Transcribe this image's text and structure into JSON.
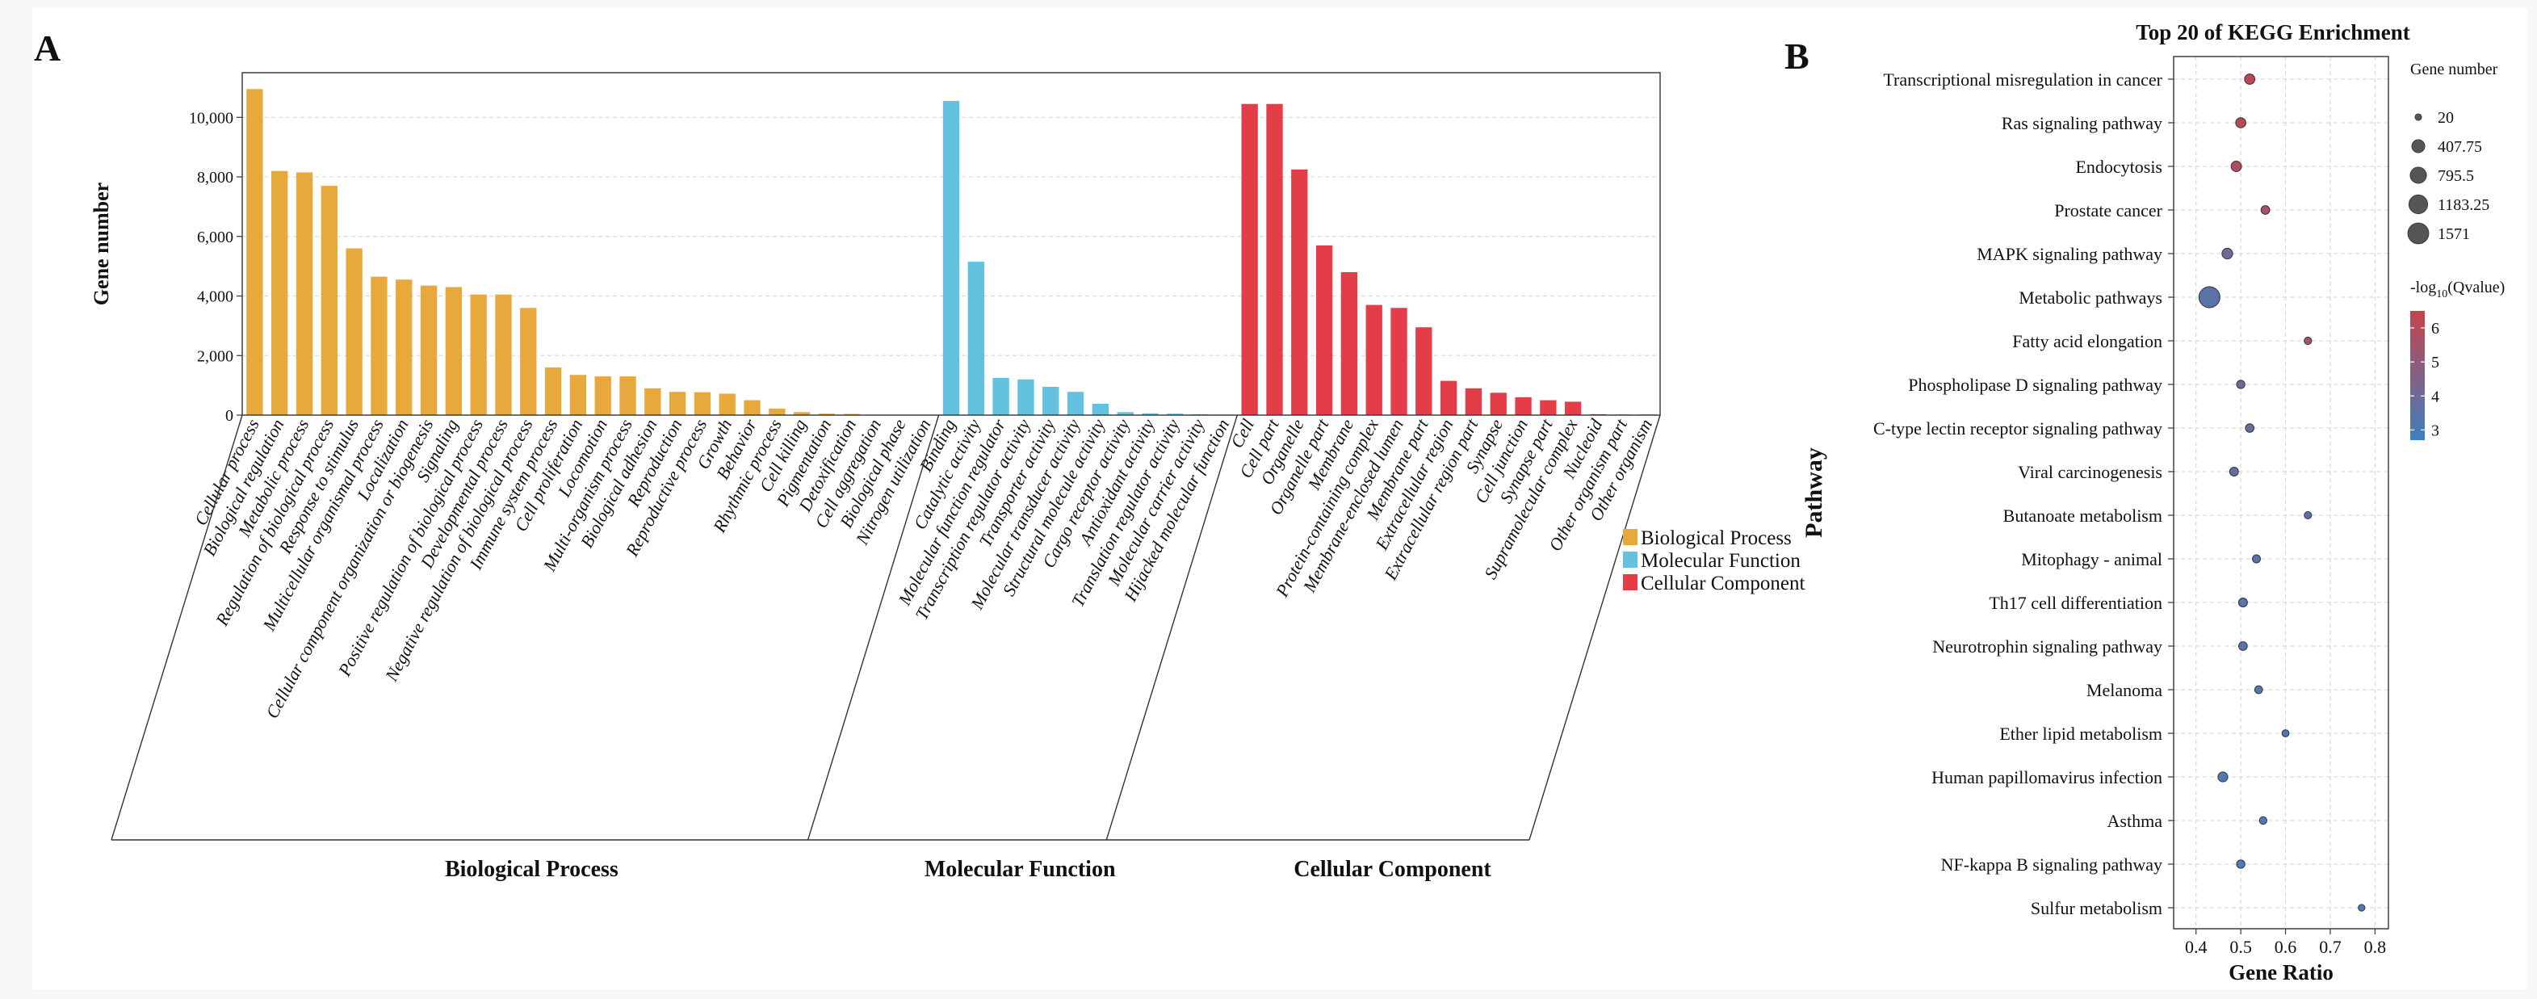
{
  "panel_a_label": "A",
  "panel_b_label": "B",
  "colors": {
    "biological_process": "#E8A93C",
    "molecular_function": "#62C2E0",
    "cellular_component": "#E33E47",
    "grid": "#d9d9d9",
    "axis": "#333333",
    "bubble_high": "#C6434B",
    "bubble_low": "#3F7FC0"
  },
  "chart_data": [
    {
      "type": "bar",
      "title": "",
      "xlabel": "",
      "ylabel": "Gene number",
      "ylim": [
        0,
        11500
      ],
      "yticks": [
        0,
        2000,
        4000,
        6000,
        8000,
        10000
      ],
      "ytick_labels": [
        "0",
        "2,000",
        "4,000",
        "6,000",
        "8,000",
        "10,000"
      ],
      "grid": true,
      "legend_position": "right",
      "legend": [
        "Biological Process",
        "Molecular Function",
        "Cellular Component"
      ],
      "groups": [
        {
          "name": "Biological Process",
          "categories": [
            "Cellular process",
            "Biological regulation",
            "Metabolic process",
            "Regulation of biological process",
            "Response to stimulus",
            "Multicellular organismal process",
            "Localization",
            "Cellular component organization or biogenesis",
            "Signaling",
            "Positive regulation of biological process",
            "Developmental process",
            "Negative regulation of biological process",
            "Immune system process",
            "Cell proliferation",
            "Locomotion",
            "Multi-organism process",
            "Biological adhesion",
            "Reproduction",
            "Reproductive process",
            "Growth",
            "Behavior",
            "Rhythmic process",
            "Cell killing",
            "Pigmentation",
            "Detoxification",
            "Cell aggregation",
            "Biological phase",
            "Nitrogen utilization"
          ],
          "values": [
            10950,
            8200,
            8150,
            7700,
            5600,
            4650,
            4550,
            4350,
            4300,
            4050,
            4050,
            3600,
            1600,
            1350,
            1300,
            1300,
            900,
            780,
            770,
            720,
            500,
            220,
            100,
            50,
            40,
            15,
            10,
            10
          ]
        },
        {
          "name": "Molecular Function",
          "categories": [
            "Binding",
            "Catalytic activity",
            "Molecular function regulator",
            "Transcription regulator activity",
            "Transporter activity",
            "Molecular transducer activity",
            "Structural molecule activity",
            "Cargo receptor activity",
            "Antioxidant activity",
            "Translation regulator activity",
            "Molecular carrier activity",
            "Hijacked molecular function"
          ],
          "values": [
            10550,
            5150,
            1250,
            1200,
            950,
            780,
            380,
            100,
            60,
            50,
            30,
            20
          ]
        },
        {
          "name": "Cellular Component",
          "categories": [
            "Cell",
            "Cell part",
            "Organelle",
            "Organelle part",
            "Membrane",
            "Protein-containing complex",
            "Membrane-enclosed lumen",
            "Membrane part",
            "Extracellular region",
            "Extracellular region part",
            "Synapse",
            "Cell junction",
            "Synapse part",
            "Supramolecular complex",
            "Nucleoid",
            "Other organism part",
            "Other organism"
          ],
          "values": [
            10450,
            10450,
            8250,
            5700,
            4800,
            3700,
            3600,
            2950,
            1150,
            900,
            750,
            600,
            500,
            450,
            30,
            20,
            20
          ]
        }
      ]
    },
    {
      "type": "scatter",
      "title": "Top 20 of KEGG Enrichment",
      "xlabel": "Gene Ratio",
      "ylabel": "Pathway",
      "xlim": [
        0.35,
        0.83
      ],
      "xticks": [
        0.4,
        0.5,
        0.6,
        0.7,
        0.8
      ],
      "xtick_labels": [
        "0.4",
        "0.5",
        "0.6",
        "0.7",
        "0.8"
      ],
      "grid": true,
      "legend_position": "right",
      "size_legend_title": "Gene number",
      "size_legend_values": [
        20,
        407.75,
        795.5,
        1183.25,
        1571
      ],
      "size_legend_labels": [
        "20",
        "407.75",
        "795.5",
        "1183.25",
        "1571"
      ],
      "color_legend_title_main": "-log",
      "color_legend_title_sub": "10",
      "color_legend_title_rest": "(Qvalue)",
      "color_legend_range": [
        2.7,
        6.5
      ],
      "color_legend_ticks": [
        6,
        5,
        4,
        3
      ],
      "color_legend_labels": [
        "6",
        "5",
        "4",
        "3"
      ],
      "pathways": [
        "Transcriptional misregulation in cancer",
        "Ras signaling pathway",
        "Endocytosis",
        "Prostate cancer",
        "MAPK signaling pathway",
        "Metabolic pathways",
        "Fatty acid elongation",
        "Phospholipase D signaling pathway",
        "C-type lectin receptor signaling pathway",
        "Viral carcinogenesis",
        "Butanoate metabolism",
        "Mitophagy - animal",
        "Th17 cell differentiation",
        "Neurotrophin signaling pathway",
        "Melanoma",
        "Ether lipid metabolism",
        "Human papillomavirus infection",
        "Asthma",
        "NF-kappa B signaling pathway",
        "Sulfur metabolism"
      ],
      "gene_ratio": [
        0.52,
        0.5,
        0.49,
        0.555,
        0.47,
        0.43,
        0.65,
        0.5,
        0.52,
        0.485,
        0.65,
        0.535,
        0.505,
        0.505,
        0.54,
        0.6,
        0.46,
        0.55,
        0.5,
        0.77
      ],
      "gene_number": [
        180,
        170,
        190,
        90,
        210,
        1571,
        40,
        70,
        80,
        95,
        35,
        60,
        100,
        85,
        55,
        30,
        150,
        45,
        75,
        20
      ],
      "neg_log10_qvalue": [
        6.3,
        6.0,
        5.8,
        5.6,
        4.0,
        3.5,
        5.3,
        3.9,
        3.8,
        3.7,
        3.5,
        3.4,
        3.4,
        3.4,
        3.3,
        3.3,
        3.2,
        3.2,
        3.1,
        3.0
      ]
    }
  ]
}
